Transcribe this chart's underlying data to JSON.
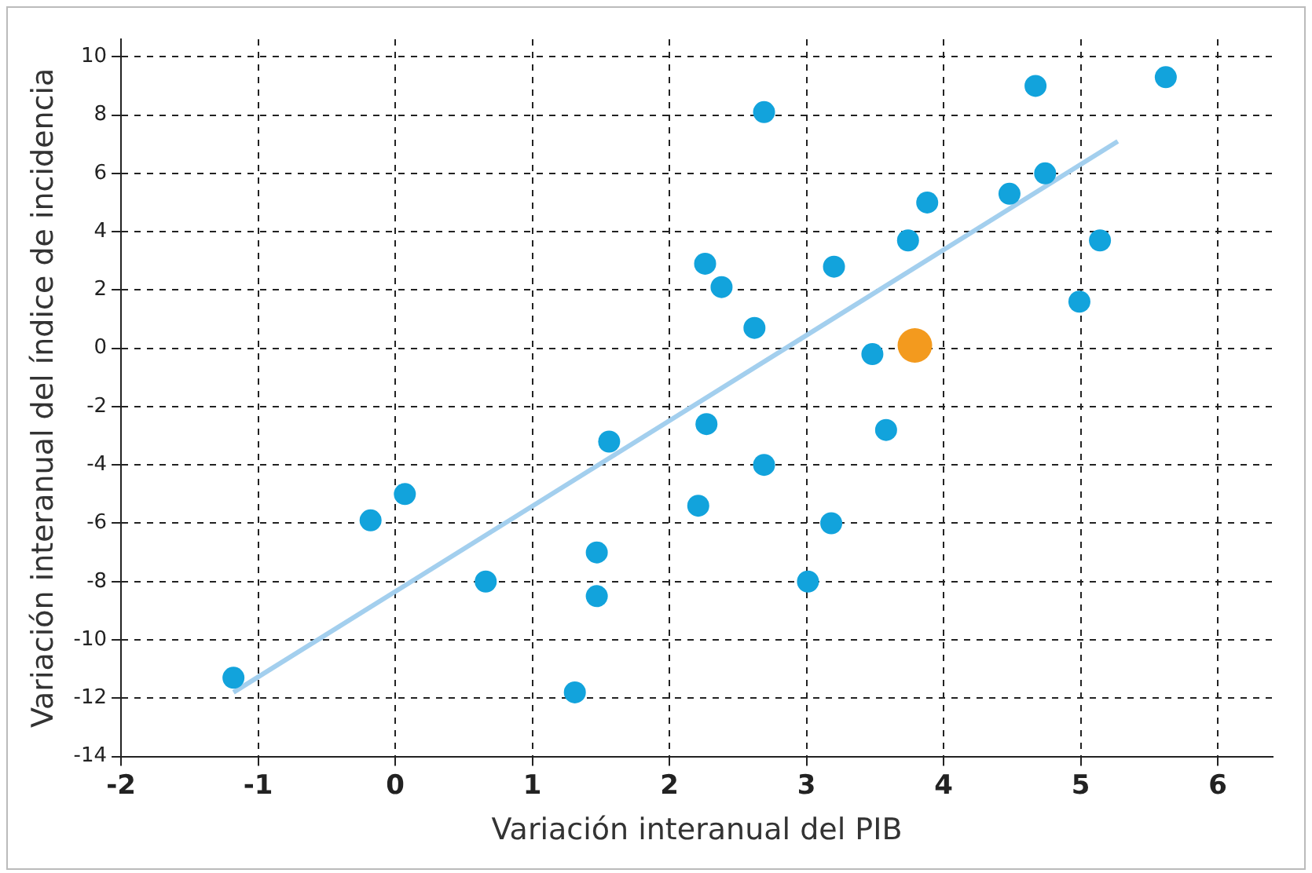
{
  "chart_data": {
    "type": "scatter",
    "xlabel": "Variación interanual del PIB",
    "ylabel": "Variación interanual del índice de incidencia",
    "xlim": [
      -2,
      6.4
    ],
    "xticks": [
      -2,
      -1,
      0,
      1,
      2,
      3,
      4,
      5,
      6
    ],
    "ylim": [
      -14,
      10.6
    ],
    "yticks": [
      -14,
      -12,
      -10,
      -8,
      -6,
      -4,
      -2,
      0,
      2,
      4,
      6,
      8,
      10
    ],
    "grid": true,
    "legend": false,
    "marker": "circle",
    "series": [
      {
        "type": "line",
        "color": "#a3cfee",
        "x": [
          -1.18,
          5.27
        ],
        "values": [
          -11.8,
          7.1
        ],
        "marker": "none"
      },
      {
        "color": "#12a3dc",
        "x": [
          -1.18,
          -0.18,
          0.07,
          0.66,
          1.31,
          1.47,
          1.47,
          1.56,
          2.21,
          2.26,
          2.27,
          2.38,
          2.62,
          2.69,
          2.69,
          3.01,
          3.18,
          3.2,
          3.48,
          3.58,
          3.74,
          3.88,
          4.48,
          4.67,
          4.74,
          4.99,
          5.14,
          5.62
        ],
        "values": [
          -11.3,
          -5.9,
          -5.0,
          -8.0,
          -11.8,
          -7.0,
          -8.5,
          -3.2,
          -5.4,
          2.9,
          -2.6,
          2.1,
          0.7,
          8.1,
          -4.0,
          -8.0,
          -6.0,
          2.8,
          -0.2,
          -2.8,
          3.7,
          5.0,
          5.3,
          9.0,
          6.0,
          1.6,
          3.7,
          9.3
        ]
      },
      {
        "color": "#f39a1e",
        "x": [
          3.79
        ],
        "values": [
          0.1
        ]
      }
    ]
  }
}
